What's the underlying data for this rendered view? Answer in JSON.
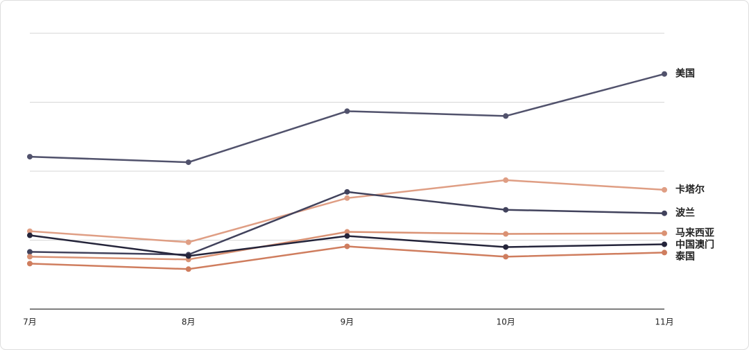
{
  "chart_data": {
    "type": "line",
    "categories": [
      "7月",
      "8月",
      "9月",
      "10月",
      "11月"
    ],
    "series": [
      {
        "name": "美国",
        "color": "#51526c",
        "values": [
          2.21,
          2.13,
          2.87,
          2.8,
          3.41
        ]
      },
      {
        "name": "卡塔尔",
        "color": "#df9e84",
        "values": [
          1.13,
          0.97,
          1.61,
          1.87,
          1.73
        ]
      },
      {
        "name": "波兰",
        "color": "#41425c",
        "values": [
          0.83,
          0.79,
          1.7,
          1.44,
          1.39
        ]
      },
      {
        "name": "马来西亚",
        "color": "#da9274",
        "values": [
          0.76,
          0.72,
          1.12,
          1.09,
          1.1
        ]
      },
      {
        "name": "中国澳门",
        "color": "#24243a",
        "values": [
          1.07,
          0.77,
          1.06,
          0.9,
          0.94
        ]
      },
      {
        "name": "泰国",
        "color": "#cf7d5e",
        "values": [
          0.66,
          0.58,
          0.91,
          0.76,
          0.82
        ]
      }
    ],
    "ylim": [
      0,
      4
    ],
    "yticks": [
      0,
      1,
      2,
      3,
      4
    ],
    "show_ytick_labels": false,
    "grid": true
  }
}
